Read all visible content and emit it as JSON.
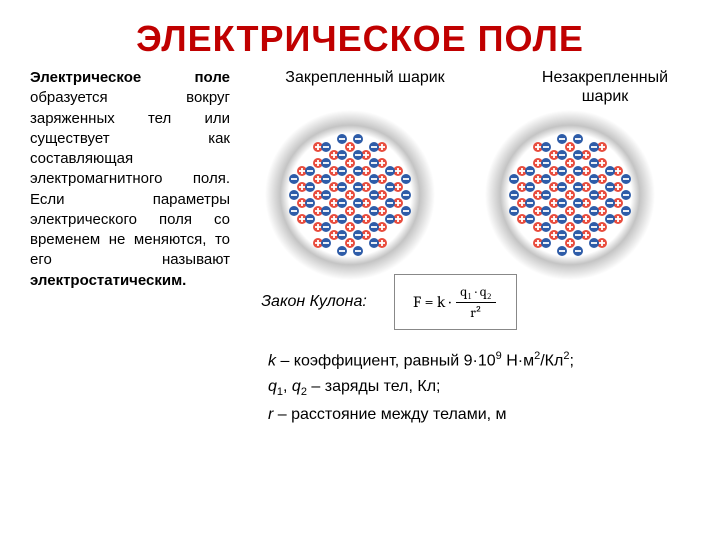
{
  "title": "ЭЛЕКТРИЧЕСКОЕ ПОЛЕ",
  "body_text": {
    "part1": "Электрическое поле",
    "part2": " образуется вокруг заряженных тел или существует как составляющая электромагнитного поля. Если параметры электрического поля со временем не меняются, то его называют ",
    "part3": "электростатическим."
  },
  "labels": {
    "ball1": "Закрепленный шарик",
    "ball2": "Незакрепленный шарик"
  },
  "law_label": "Закон Кулона:",
  "formula": {
    "lhs": "F = k ·",
    "num": "q₁ · q₂",
    "den": "r²"
  },
  "explain": {
    "k_var": "k",
    "k_text": " – коэффициент, равный 9·10",
    "k_exp": "9",
    "k_units": " Н·м",
    "k_exp2": "2",
    "k_units2": "/Кл",
    "k_exp3": "2",
    "k_end": ";",
    "q_var1": "q",
    "q_sub1": "1",
    "q_mid": ", ",
    "q_var2": "q",
    "q_sub2": "2",
    "q_text": " – заряды тел, Кл;",
    "r_var": "r",
    "r_text": " – расстояние между телами, м"
  },
  "ball_style": {
    "plus_color": "#e84c3d",
    "minus_color": "#2e5ca8",
    "aura_c1": "#ffffff",
    "aura_c2": "#c4c4c4",
    "circle_r": 62
  },
  "balls": {
    "left": {
      "plus": [
        [
          0,
          0
        ],
        [
          -16,
          -8
        ],
        [
          16,
          -8
        ],
        [
          -32,
          0
        ],
        [
          32,
          0
        ],
        [
          -16,
          8
        ],
        [
          16,
          8
        ],
        [
          0,
          -16
        ],
        [
          0,
          16
        ],
        [
          -32,
          -16
        ],
        [
          32,
          -16
        ],
        [
          -32,
          16
        ],
        [
          32,
          16
        ],
        [
          -48,
          -8
        ],
        [
          48,
          -8
        ],
        [
          -48,
          8
        ],
        [
          48,
          8
        ],
        [
          -16,
          -24
        ],
        [
          16,
          -24
        ],
        [
          -16,
          24
        ],
        [
          16,
          24
        ],
        [
          0,
          -32
        ],
        [
          0,
          32
        ],
        [
          -32,
          -32
        ],
        [
          32,
          -32
        ],
        [
          -32,
          32
        ],
        [
          32,
          32
        ],
        [
          -48,
          -24
        ],
        [
          48,
          -24
        ],
        [
          -48,
          24
        ],
        [
          48,
          24
        ],
        [
          -16,
          -40
        ],
        [
          16,
          -40
        ],
        [
          -16,
          40
        ],
        [
          16,
          40
        ],
        [
          0,
          -48
        ],
        [
          0,
          48
        ],
        [
          -32,
          -48
        ],
        [
          32,
          -48
        ],
        [
          -32,
          48
        ],
        [
          32,
          48
        ]
      ],
      "minus": [
        [
          -8,
          -8
        ],
        [
          8,
          -8
        ],
        [
          -24,
          0
        ],
        [
          24,
          0
        ],
        [
          -8,
          8
        ],
        [
          8,
          8
        ],
        [
          -40,
          -8
        ],
        [
          40,
          -8
        ],
        [
          -40,
          8
        ],
        [
          40,
          8
        ],
        [
          -24,
          -16
        ],
        [
          24,
          -16
        ],
        [
          -24,
          16
        ],
        [
          24,
          16
        ],
        [
          -8,
          -24
        ],
        [
          8,
          -24
        ],
        [
          -8,
          24
        ],
        [
          8,
          24
        ],
        [
          -40,
          -24
        ],
        [
          40,
          -24
        ],
        [
          -40,
          24
        ],
        [
          40,
          24
        ],
        [
          -24,
          -32
        ],
        [
          24,
          -32
        ],
        [
          -24,
          32
        ],
        [
          24,
          32
        ],
        [
          -56,
          0
        ],
        [
          56,
          0
        ],
        [
          -56,
          -16
        ],
        [
          56,
          -16
        ],
        [
          -56,
          16
        ],
        [
          56,
          16
        ],
        [
          -8,
          -40
        ],
        [
          8,
          -40
        ],
        [
          -8,
          40
        ],
        [
          8,
          40
        ],
        [
          -24,
          -48
        ],
        [
          24,
          -48
        ],
        [
          -24,
          48
        ],
        [
          24,
          48
        ],
        [
          -8,
          -56
        ],
        [
          8,
          -56
        ],
        [
          -8,
          56
        ],
        [
          8,
          56
        ]
      ]
    },
    "right": {
      "plus": [
        [
          0,
          0
        ],
        [
          -16,
          -8
        ],
        [
          16,
          -8
        ],
        [
          -32,
          0
        ],
        [
          32,
          0
        ],
        [
          -16,
          8
        ],
        [
          16,
          8
        ],
        [
          0,
          -16
        ],
        [
          0,
          16
        ],
        [
          -32,
          -16
        ],
        [
          32,
          -16
        ],
        [
          -32,
          16
        ],
        [
          32,
          16
        ],
        [
          -48,
          -8
        ],
        [
          48,
          -8
        ],
        [
          -48,
          8
        ],
        [
          48,
          8
        ],
        [
          -16,
          -24
        ],
        [
          16,
          -24
        ],
        [
          -16,
          24
        ],
        [
          16,
          24
        ],
        [
          0,
          -32
        ],
        [
          0,
          32
        ],
        [
          -32,
          -32
        ],
        [
          32,
          -32
        ],
        [
          -32,
          32
        ],
        [
          32,
          32
        ],
        [
          -48,
          -24
        ],
        [
          48,
          -24
        ],
        [
          -48,
          24
        ],
        [
          48,
          24
        ],
        [
          -16,
          -40
        ],
        [
          16,
          -40
        ],
        [
          -16,
          40
        ],
        [
          16,
          40
        ],
        [
          0,
          -48
        ],
        [
          0,
          48
        ],
        [
          -32,
          -48
        ],
        [
          32,
          -48
        ],
        [
          -32,
          48
        ],
        [
          32,
          48
        ]
      ],
      "minus": [
        [
          -8,
          -8
        ],
        [
          8,
          -8
        ],
        [
          -24,
          0
        ],
        [
          24,
          0
        ],
        [
          -8,
          8
        ],
        [
          8,
          8
        ],
        [
          -40,
          -8
        ],
        [
          40,
          -8
        ],
        [
          -40,
          8
        ],
        [
          40,
          8
        ],
        [
          -24,
          -16
        ],
        [
          24,
          -16
        ],
        [
          -24,
          16
        ],
        [
          24,
          16
        ],
        [
          -8,
          -24
        ],
        [
          8,
          -24
        ],
        [
          -8,
          24
        ],
        [
          8,
          24
        ],
        [
          -40,
          -24
        ],
        [
          40,
          -24
        ],
        [
          -40,
          24
        ],
        [
          40,
          24
        ],
        [
          -24,
          -32
        ],
        [
          24,
          -32
        ],
        [
          -24,
          32
        ],
        [
          24,
          32
        ],
        [
          -56,
          0
        ],
        [
          56,
          0
        ],
        [
          -56,
          -16
        ],
        [
          56,
          -16
        ],
        [
          -56,
          16
        ],
        [
          56,
          16
        ],
        [
          -8,
          -40
        ],
        [
          8,
          -40
        ],
        [
          -8,
          40
        ],
        [
          8,
          40
        ],
        [
          -24,
          -48
        ],
        [
          24,
          -48
        ],
        [
          -24,
          48
        ],
        [
          24,
          48
        ],
        [
          -8,
          -56
        ],
        [
          8,
          -56
        ],
        [
          -8,
          56
        ],
        [
          8,
          56
        ]
      ]
    }
  }
}
